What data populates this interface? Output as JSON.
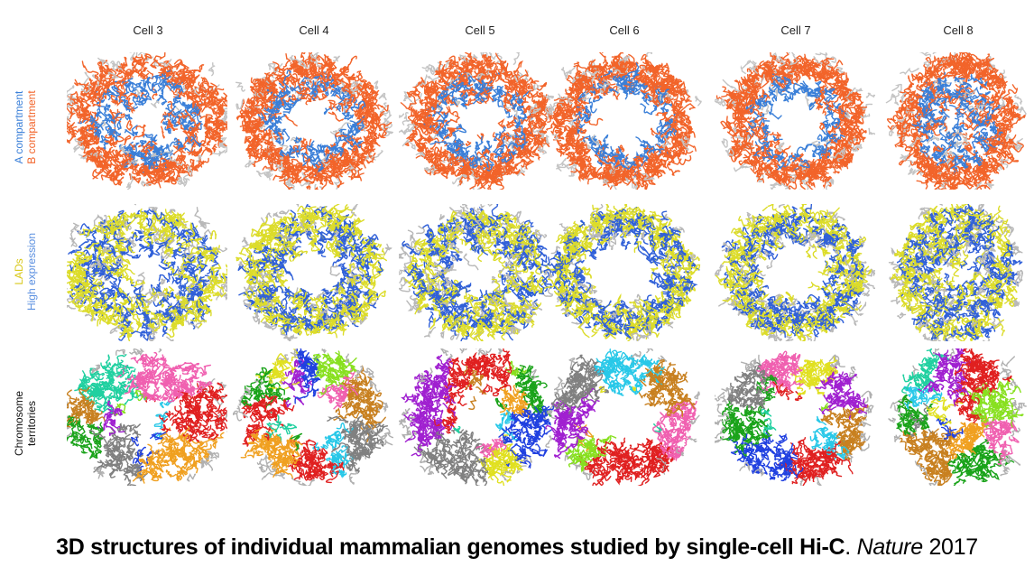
{
  "columns": [
    "Cell 3",
    "Cell 4",
    "Cell 5",
    "Cell 6",
    "Cell 7",
    "Cell 8"
  ],
  "rows": [
    {
      "labels": [
        {
          "text": "A compartment",
          "color": "#3a7fd8"
        },
        {
          "text": "B compartment",
          "color": "#f2642a"
        }
      ],
      "palette": [
        "#f2642a",
        "#3a7fd8",
        "#c4c4c4"
      ]
    },
    {
      "labels": [
        {
          "text": "LADs",
          "color": "#d8c81a"
        },
        {
          "text": "High expression",
          "color": "#5a8fe0"
        }
      ],
      "palette": [
        "#dcdc2a",
        "#3060d8",
        "#b8b8b8"
      ]
    },
    {
      "labels": [
        {
          "text": "Chromosome",
          "color": "#111111"
        },
        {
          "text": "territories",
          "color": "#111111"
        }
      ],
      "palette": [
        "#e02020",
        "#1aa31a",
        "#2040e0",
        "#f0a020",
        "#28c8e8",
        "#a020d0",
        "#88e020",
        "#f060b0",
        "#808080",
        "#c88020",
        "#20d0a0",
        "#e0e020"
      ]
    }
  ],
  "caption": {
    "title": "3D structures of individual mammalian genomes studied by single-cell Hi-C",
    "separator": ". ",
    "journal": "Nature",
    "year": " 2017"
  }
}
